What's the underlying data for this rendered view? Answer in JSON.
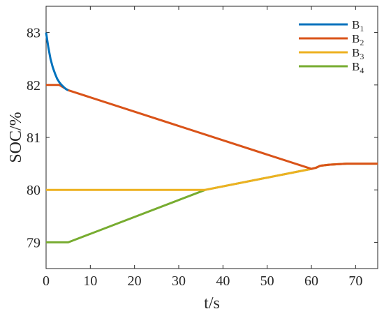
{
  "chart_data": {
    "type": "line",
    "title": "",
    "xlabel": "t/s",
    "ylabel": "SOC/%",
    "xlim": [
      0,
      75
    ],
    "ylim": [
      78.5,
      83.5
    ],
    "xticks": [
      0,
      10,
      20,
      30,
      40,
      50,
      60,
      70
    ],
    "yticks": [
      79,
      80,
      81,
      82,
      83
    ],
    "grid": false,
    "legend_position": "top-right",
    "series": [
      {
        "name": "B",
        "sub": "1",
        "color": "#0072BD",
        "x": [
          0,
          0.5,
          1,
          1.5,
          2,
          2.5,
          3,
          3.5,
          4,
          4.5,
          5
        ],
        "y": [
          83.0,
          82.72,
          82.5,
          82.34,
          82.22,
          82.12,
          82.05,
          82.0,
          81.96,
          81.92,
          81.9
        ]
      },
      {
        "name": "B",
        "sub": "2",
        "color": "#D95319",
        "x": [
          0,
          3,
          4,
          5,
          60,
          61,
          62,
          64,
          66,
          68,
          70,
          75
        ],
        "y": [
          82.0,
          82.0,
          81.95,
          81.9,
          80.4,
          80.42,
          80.46,
          80.48,
          80.49,
          80.5,
          80.5,
          80.5
        ]
      },
      {
        "name": "B",
        "sub": "3",
        "color": "#EDB120",
        "x": [
          0,
          36,
          60,
          61,
          62,
          64,
          66,
          68,
          70,
          75
        ],
        "y": [
          80.0,
          80.0,
          80.4,
          80.42,
          80.46,
          80.48,
          80.49,
          80.5,
          80.5,
          80.5
        ]
      },
      {
        "name": "B",
        "sub": "4",
        "color": "#77AC30",
        "x": [
          0,
          5,
          36,
          60,
          61,
          62,
          64,
          66,
          68,
          70,
          75
        ],
        "y": [
          79.0,
          79.0,
          80.0,
          80.4,
          80.42,
          80.46,
          80.48,
          80.49,
          80.5,
          80.5,
          80.5
        ]
      }
    ]
  }
}
